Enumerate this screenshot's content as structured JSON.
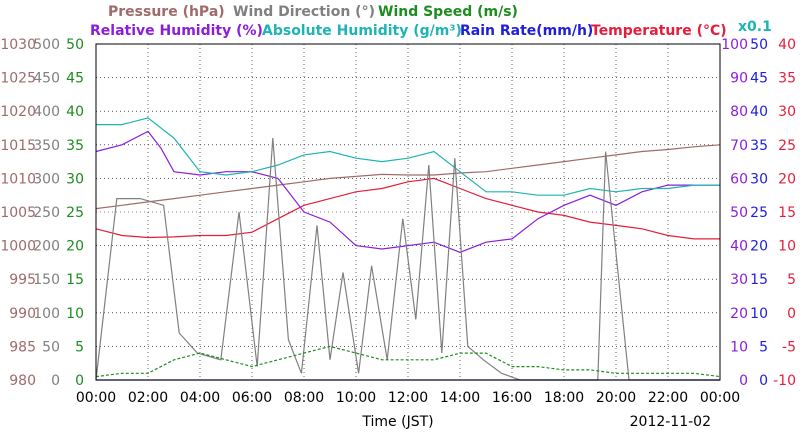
{
  "chart_data": {
    "type": "line",
    "date": "2012-11-02",
    "xlabel": "Time (JST)",
    "x_ticks": [
      "00:00",
      "02:00",
      "04:00",
      "06:00",
      "08:00",
      "10:00",
      "12:00",
      "14:00",
      "16:00",
      "18:00",
      "20:00",
      "22:00",
      "00:00"
    ],
    "xlim": [
      0,
      24
    ],
    "legend_row1": [
      {
        "key": "pressure",
        "label": "Pressure (hPa)",
        "color": "#A06A6A"
      },
      {
        "key": "wind_direction",
        "label": "Wind Direction (°)",
        "color": "#808080"
      },
      {
        "key": "wind_speed",
        "label": "Wind Speed (m/s)",
        "color": "#1E8C1E"
      }
    ],
    "legend_row2": [
      {
        "key": "relative_humidity",
        "label": "Relative Humidity (%)",
        "color": "#8B1EDC"
      },
      {
        "key": "absolute_humidity",
        "label": "Absolute Humidity (g/m³)",
        "color": "#1EB4B4"
      },
      {
        "key": "rain_rate",
        "label": "Rain Rate(mm/h)",
        "color": "#1E1EDC"
      },
      {
        "key": "temperature",
        "label": "Temperature (°C)",
        "color": "#E61E3C"
      }
    ],
    "ah_scale_note": "x0.1",
    "axes": {
      "pressure": {
        "ticks": [
          "1030",
          "1025",
          "1020",
          "1015",
          "1010",
          "1005",
          "1000",
          "995",
          "990",
          "985",
          "980"
        ],
        "range": [
          980,
          1030
        ],
        "color": "#A06A6A"
      },
      "wind_direction": {
        "ticks": [
          "500",
          "450",
          "400",
          "350",
          "300",
          "250",
          "200",
          "150",
          "100",
          "50",
          "0"
        ],
        "range": [
          0,
          500
        ],
        "color": "#808080"
      },
      "wind_speed": {
        "ticks": [
          "50",
          "45",
          "40",
          "35",
          "30",
          "25",
          "20",
          "15",
          "10",
          "5",
          "0"
        ],
        "range": [
          0,
          50
        ],
        "color": "#1E8C1E"
      },
      "humidity": {
        "ticks": [
          "100",
          "90",
          "80",
          "70",
          "60",
          "50",
          "40",
          "30",
          "20",
          "10",
          "0"
        ],
        "range": [
          0,
          100
        ],
        "color": "#8B1EDC"
      },
      "rain_rate": {
        "ticks": [
          "50",
          "45",
          "40",
          "35",
          "30",
          "25",
          "20",
          "15",
          "10",
          "5",
          "0"
        ],
        "range": [
          0,
          50
        ],
        "color": "#1E1EDC"
      },
      "temperature": {
        "ticks": [
          "40",
          "35",
          "30",
          "25",
          "20",
          "15",
          "10",
          "5",
          "0",
          "-5",
          "-10"
        ],
        "range": [
          -10,
          40
        ],
        "color": "#E61E3C"
      }
    },
    "series": [
      {
        "key": "pressure",
        "x": [
          0,
          1,
          2,
          3,
          4,
          5,
          6,
          7,
          8,
          9,
          10,
          11,
          12,
          13,
          14,
          15,
          16,
          17,
          18,
          19,
          20,
          21,
          22,
          23,
          24
        ],
        "values": [
          1005.5,
          1006,
          1006.5,
          1007,
          1007.5,
          1008,
          1008.5,
          1009,
          1009.5,
          1010,
          1010.3,
          1010.6,
          1010.5,
          1010.5,
          1010.8,
          1011,
          1011.5,
          1012,
          1012.5,
          1013,
          1013.5,
          1014,
          1014.3,
          1014.7,
          1015
        ]
      },
      {
        "key": "temperature",
        "x": [
          0,
          1,
          2,
          3,
          4,
          5,
          6,
          7,
          8,
          9,
          10,
          11,
          12,
          13,
          14,
          15,
          16,
          17,
          18,
          19,
          20,
          21,
          22,
          23,
          24
        ],
        "values": [
          12.5,
          11.5,
          11.2,
          11.3,
          11.5,
          11.5,
          12,
          14,
          16,
          17,
          18,
          18.5,
          19.5,
          20,
          18.5,
          17,
          16,
          15,
          14.5,
          13.5,
          13,
          12.5,
          11.5,
          11,
          11
        ]
      },
      {
        "key": "relative_humidity",
        "x": [
          0,
          1,
          2,
          2.5,
          3,
          4,
          5,
          6,
          7,
          8,
          9,
          10,
          11,
          12,
          13,
          14,
          15,
          16,
          17,
          18,
          19,
          20,
          21,
          22,
          23,
          24
        ],
        "values": [
          68,
          70,
          74,
          69,
          62,
          61,
          62,
          62,
          60,
          50,
          47,
          40,
          39,
          40,
          41,
          38,
          41,
          42,
          48,
          52,
          55,
          52,
          56,
          58,
          58,
          58
        ]
      },
      {
        "key": "absolute_humidity",
        "x": [
          0,
          1,
          2,
          3,
          4,
          5,
          6,
          7,
          8,
          9,
          10,
          11,
          12,
          12.5,
          13,
          14,
          15,
          16,
          17,
          18,
          19,
          20,
          21,
          22,
          23,
          24
        ],
        "values": [
          76,
          76,
          78,
          72,
          62,
          61,
          62,
          64,
          67,
          68,
          66,
          65,
          66,
          67,
          68,
          62,
          56,
          56,
          55,
          55,
          57,
          56,
          57,
          57,
          58,
          58
        ]
      },
      {
        "key": "wind_direction",
        "x": [
          0,
          0.8,
          1.7,
          2.6,
          3.2,
          3.9,
          4.8,
          5.5,
          6.2,
          6.8,
          7.4,
          7.9,
          8.5,
          9,
          9.5,
          10.1,
          10.6,
          11.2,
          11.8,
          12.3,
          12.8,
          13.3,
          13.8,
          14.3,
          14.9,
          15.6,
          16.3,
          17.2,
          18.5,
          19.3,
          19.6,
          20.5,
          21.5,
          22.5,
          24
        ],
        "values": [
          0,
          270,
          270,
          260,
          70,
          40,
          30,
          250,
          20,
          360,
          60,
          10,
          230,
          30,
          160,
          10,
          170,
          30,
          240,
          90,
          320,
          40,
          330,
          50,
          30,
          10,
          0,
          0,
          0,
          0,
          340,
          0,
          0,
          0,
          0
        ]
      },
      {
        "key": "wind_speed",
        "x": [
          0,
          1,
          2,
          3,
          4,
          5,
          6,
          7,
          8,
          9,
          10,
          11,
          12,
          13,
          14,
          15,
          16,
          17,
          18,
          19,
          20,
          21,
          22,
          23,
          24
        ],
        "values": [
          0.5,
          1,
          1,
          3,
          4,
          3,
          2,
          3,
          4,
          5,
          4,
          3,
          3,
          3,
          4,
          4,
          2,
          2,
          1.5,
          1.5,
          1,
          1,
          1,
          1,
          0.5
        ]
      },
      {
        "key": "rain_rate",
        "x": [
          0,
          24
        ],
        "values": [
          0,
          0
        ]
      }
    ]
  }
}
